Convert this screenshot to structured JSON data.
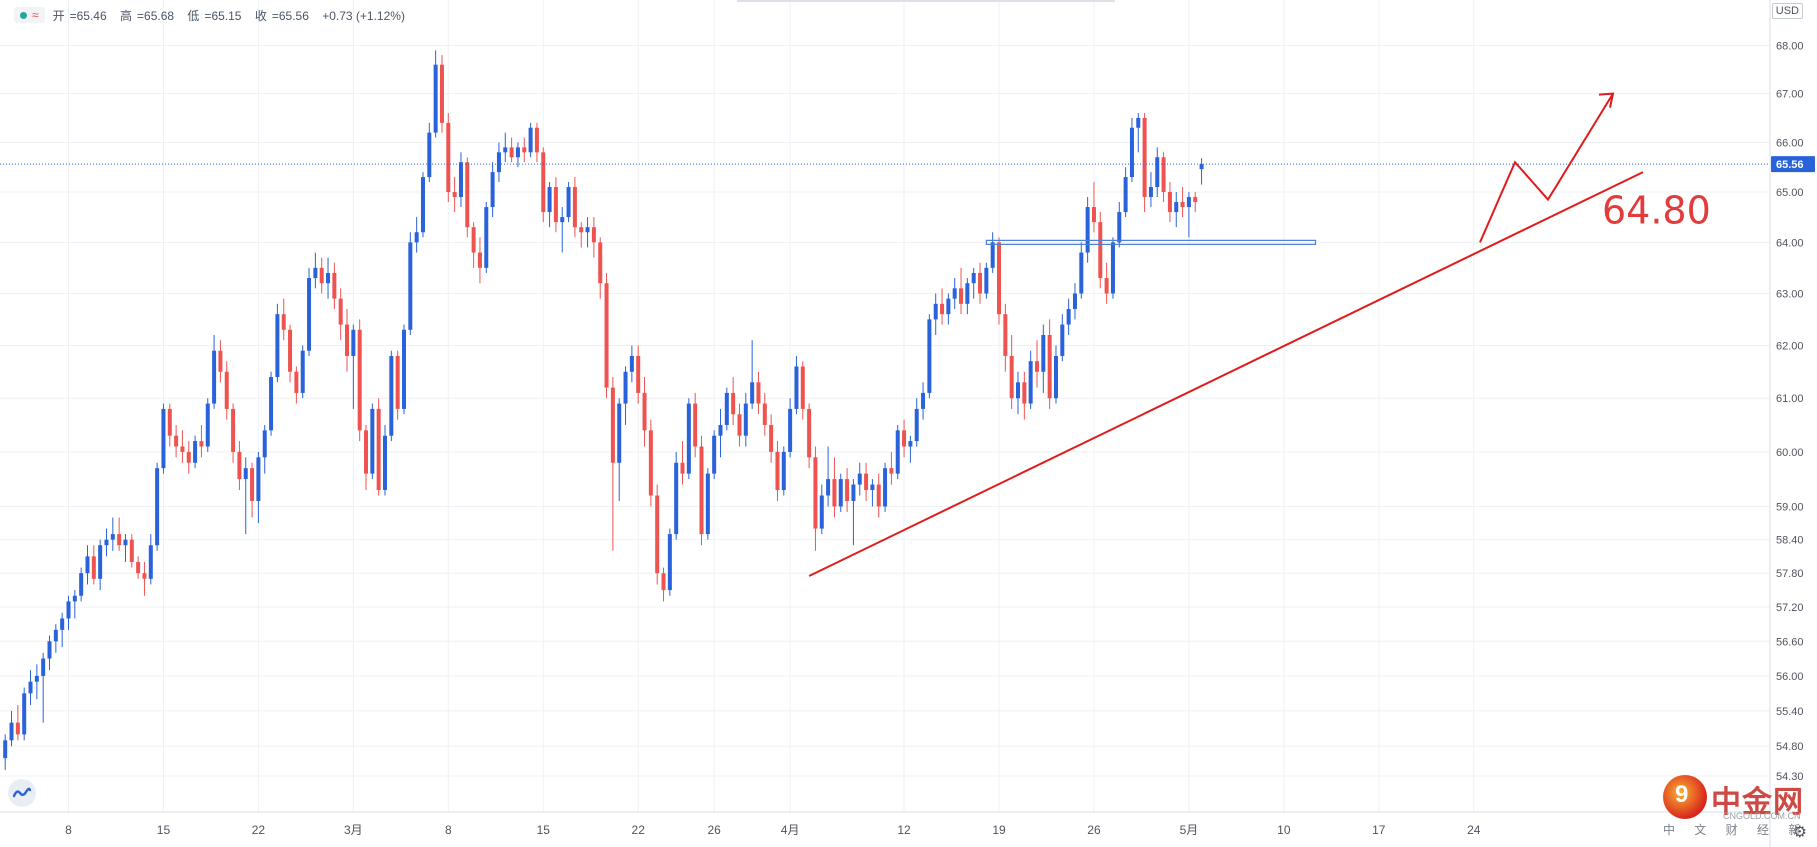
{
  "legend": {
    "open_label": "开",
    "open": "65.46",
    "high_label": "高",
    "high": "65.68",
    "low_label": "低",
    "low": "65.15",
    "close_label": "收",
    "close": "65.56",
    "change": "+0.73 (+1.12%)"
  },
  "currency": "USD",
  "annotation": {
    "level_text": "64.80"
  },
  "watermark": {
    "name": "中金网",
    "site": "CNGOLD.COM.CN",
    "sub": "中 文 财 经 新 媒 体"
  },
  "chart_data": {
    "type": "candlestick",
    "title": "",
    "xlabel": "",
    "ylabel": "",
    "ylim": [
      54.3,
      68.2
    ],
    "scale": "log",
    "grid": true,
    "y_ticks": [
      "68.00",
      "67.00",
      "66.00",
      "65.00",
      "64.00",
      "63.00",
      "62.00",
      "61.00",
      "60.00",
      "59.00",
      "58.40",
      "57.80",
      "57.20",
      "56.60",
      "56.00",
      "55.40",
      "54.80",
      "54.30"
    ],
    "x_ticks": [
      {
        "label": "8",
        "bar": 10
      },
      {
        "label": "15",
        "bar": 25
      },
      {
        "label": "22",
        "bar": 40
      },
      {
        "label": "3月",
        "bar": 55
      },
      {
        "label": "8",
        "bar": 70
      },
      {
        "label": "15",
        "bar": 85
      },
      {
        "label": "22",
        "bar": 100
      },
      {
        "label": "26",
        "bar": 112
      },
      {
        "label": "4月",
        "bar": 124
      },
      {
        "label": "12",
        "bar": 142
      },
      {
        "label": "19",
        "bar": 157
      },
      {
        "label": "26",
        "bar": 172
      },
      {
        "label": "5月",
        "bar": 187
      },
      {
        "label": "10",
        "bar": 202
      },
      {
        "label": "17",
        "bar": 217
      },
      {
        "label": "24",
        "bar": 232
      }
    ],
    "last_price": 65.56,
    "colors": {
      "up": "#2962d9",
      "down": "#ef5350",
      "annotation": "#e01b1b",
      "level": "#4a7fd6"
    },
    "candles_ohlc": [
      [
        54.6,
        55.0,
        54.4,
        54.9
      ],
      [
        54.9,
        55.4,
        54.8,
        55.2
      ],
      [
        55.2,
        55.5,
        54.9,
        55.0
      ],
      [
        55.0,
        55.8,
        54.9,
        55.7
      ],
      [
        55.7,
        56.1,
        55.5,
        55.9
      ],
      [
        55.9,
        56.2,
        55.6,
        56.0
      ],
      [
        56.0,
        56.4,
        55.2,
        56.3
      ],
      [
        56.3,
        56.7,
        56.1,
        56.6
      ],
      [
        56.6,
        56.9,
        56.4,
        56.8
      ],
      [
        56.8,
        57.1,
        56.5,
        57.0
      ],
      [
        57.0,
        57.4,
        56.8,
        57.3
      ],
      [
        57.3,
        57.5,
        57.0,
        57.4
      ],
      [
        57.4,
        57.9,
        57.3,
        57.8
      ],
      [
        57.8,
        58.3,
        57.6,
        58.1
      ],
      [
        58.1,
        58.3,
        57.6,
        57.7
      ],
      [
        57.7,
        58.4,
        57.5,
        58.3
      ],
      [
        58.3,
        58.6,
        58.1,
        58.4
      ],
      [
        58.4,
        58.8,
        58.2,
        58.5
      ],
      [
        58.5,
        58.8,
        58.2,
        58.3
      ],
      [
        58.3,
        58.5,
        58.0,
        58.4
      ],
      [
        58.4,
        58.5,
        57.9,
        58.0
      ],
      [
        58.0,
        58.1,
        57.7,
        57.8
      ],
      [
        57.8,
        58.0,
        57.4,
        57.7
      ],
      [
        57.7,
        58.5,
        57.6,
        58.3
      ],
      [
        58.3,
        59.8,
        58.2,
        59.7
      ],
      [
        59.7,
        60.9,
        59.6,
        60.8
      ],
      [
        60.8,
        60.9,
        60.1,
        60.3
      ],
      [
        60.3,
        60.5,
        59.9,
        60.1
      ],
      [
        60.1,
        60.4,
        59.8,
        60.0
      ],
      [
        60.0,
        60.2,
        59.6,
        59.8
      ],
      [
        59.8,
        60.3,
        59.7,
        60.2
      ],
      [
        60.2,
        60.5,
        59.9,
        60.1
      ],
      [
        60.1,
        61.0,
        60.0,
        60.9
      ],
      [
        60.9,
        62.2,
        60.8,
        61.9
      ],
      [
        61.9,
        62.1,
        61.3,
        61.5
      ],
      [
        61.5,
        61.7,
        60.6,
        60.8
      ],
      [
        60.8,
        60.9,
        59.8,
        60.0
      ],
      [
        60.0,
        60.2,
        59.3,
        59.5
      ],
      [
        59.5,
        59.9,
        58.5,
        59.7
      ],
      [
        59.7,
        59.8,
        58.8,
        59.1
      ],
      [
        59.1,
        60.0,
        58.7,
        59.9
      ],
      [
        59.9,
        60.5,
        59.6,
        60.4
      ],
      [
        60.4,
        61.5,
        60.3,
        61.4
      ],
      [
        61.4,
        62.8,
        61.3,
        62.6
      ],
      [
        62.6,
        62.9,
        62.1,
        62.3
      ],
      [
        62.3,
        62.4,
        61.3,
        61.5
      ],
      [
        61.5,
        61.6,
        60.9,
        61.1
      ],
      [
        61.1,
        62.0,
        61.0,
        61.9
      ],
      [
        61.9,
        63.5,
        61.8,
        63.3
      ],
      [
        63.3,
        63.8,
        63.1,
        63.5
      ],
      [
        63.5,
        63.7,
        63.0,
        63.2
      ],
      [
        63.2,
        63.7,
        62.9,
        63.4
      ],
      [
        63.4,
        63.6,
        62.7,
        62.9
      ],
      [
        62.9,
        63.1,
        62.1,
        62.4
      ],
      [
        62.4,
        62.7,
        61.5,
        61.8
      ],
      [
        61.8,
        62.4,
        60.8,
        62.3
      ],
      [
        62.3,
        62.5,
        60.2,
        60.4
      ],
      [
        60.4,
        60.5,
        59.3,
        59.6
      ],
      [
        59.6,
        60.9,
        59.5,
        60.8
      ],
      [
        60.8,
        61.0,
        59.2,
        59.3
      ],
      [
        59.3,
        60.5,
        59.2,
        60.3
      ],
      [
        60.3,
        61.9,
        60.2,
        61.8
      ],
      [
        61.8,
        61.9,
        60.6,
        60.8
      ],
      [
        60.8,
        62.4,
        60.7,
        62.3
      ],
      [
        62.3,
        64.2,
        62.2,
        64.0
      ],
      [
        64.0,
        64.5,
        63.8,
        64.2
      ],
      [
        64.2,
        65.4,
        64.1,
        65.3
      ],
      [
        65.3,
        66.4,
        65.2,
        66.2
      ],
      [
        66.2,
        67.9,
        66.1,
        67.6
      ],
      [
        67.6,
        67.8,
        66.2,
        66.4
      ],
      [
        66.4,
        66.6,
        64.8,
        65.0
      ],
      [
        65.0,
        65.3,
        64.6,
        64.9
      ],
      [
        64.9,
        65.8,
        64.7,
        65.6
      ],
      [
        65.6,
        65.7,
        64.1,
        64.3
      ],
      [
        64.3,
        64.4,
        63.5,
        63.8
      ],
      [
        63.8,
        64.1,
        63.2,
        63.5
      ],
      [
        63.5,
        64.8,
        63.4,
        64.7
      ],
      [
        64.7,
        65.6,
        64.5,
        65.4
      ],
      [
        65.4,
        66.0,
        65.2,
        65.8
      ],
      [
        65.8,
        66.2,
        65.6,
        65.9
      ],
      [
        65.9,
        66.1,
        65.6,
        65.7
      ],
      [
        65.7,
        66.0,
        65.5,
        65.9
      ],
      [
        65.9,
        66.1,
        65.6,
        65.8
      ],
      [
        65.8,
        66.4,
        65.7,
        66.3
      ],
      [
        66.3,
        66.4,
        65.6,
        65.8
      ],
      [
        65.8,
        65.9,
        64.4,
        64.6
      ],
      [
        64.6,
        65.2,
        64.3,
        65.1
      ],
      [
        65.1,
        65.3,
        64.2,
        64.4
      ],
      [
        64.4,
        64.7,
        63.8,
        64.5
      ],
      [
        64.5,
        65.2,
        64.4,
        65.1
      ],
      [
        65.1,
        65.3,
        64.1,
        64.3
      ],
      [
        64.3,
        64.4,
        63.9,
        64.2
      ],
      [
        64.2,
        64.5,
        63.9,
        64.3
      ],
      [
        64.3,
        64.5,
        63.7,
        64.0
      ],
      [
        64.0,
        64.1,
        62.9,
        63.2
      ],
      [
        63.2,
        63.4,
        61.0,
        61.2
      ],
      [
        61.2,
        61.4,
        58.2,
        59.8
      ],
      [
        59.8,
        61.0,
        59.1,
        60.9
      ],
      [
        60.9,
        61.6,
        60.5,
        61.5
      ],
      [
        61.5,
        62.0,
        61.3,
        61.8
      ],
      [
        61.8,
        62.0,
        60.9,
        61.1
      ],
      [
        61.1,
        61.4,
        60.1,
        60.4
      ],
      [
        60.4,
        60.6,
        59.0,
        59.2
      ],
      [
        59.2,
        59.4,
        57.6,
        57.8
      ],
      [
        57.8,
        57.9,
        57.3,
        57.5
      ],
      [
        57.5,
        58.6,
        57.4,
        58.5
      ],
      [
        58.5,
        60.0,
        58.4,
        59.8
      ],
      [
        59.8,
        60.2,
        59.4,
        59.6
      ],
      [
        59.6,
        61.0,
        59.5,
        60.9
      ],
      [
        60.9,
        61.1,
        59.9,
        60.1
      ],
      [
        60.1,
        60.3,
        58.3,
        58.5
      ],
      [
        58.5,
        59.7,
        58.4,
        59.6
      ],
      [
        59.6,
        60.4,
        59.5,
        60.3
      ],
      [
        60.3,
        60.8,
        59.9,
        60.5
      ],
      [
        60.5,
        61.2,
        60.4,
        61.1
      ],
      [
        61.1,
        61.4,
        60.5,
        60.7
      ],
      [
        60.7,
        60.9,
        60.1,
        60.3
      ],
      [
        60.3,
        61.1,
        60.1,
        60.9
      ],
      [
        60.9,
        62.1,
        60.8,
        61.3
      ],
      [
        61.3,
        61.5,
        60.7,
        60.9
      ],
      [
        60.9,
        61.1,
        60.3,
        60.5
      ],
      [
        60.5,
        60.7,
        59.8,
        60.0
      ],
      [
        60.0,
        60.2,
        59.1,
        59.3
      ],
      [
        59.3,
        60.1,
        59.2,
        60.0
      ],
      [
        60.0,
        61.0,
        59.9,
        60.8
      ],
      [
        60.8,
        61.8,
        60.7,
        61.6
      ],
      [
        61.6,
        61.7,
        60.6,
        60.8
      ],
      [
        60.8,
        60.9,
        59.7,
        59.9
      ],
      [
        59.9,
        60.1,
        58.2,
        58.6
      ],
      [
        58.6,
        59.4,
        58.5,
        59.2
      ],
      [
        59.2,
        60.1,
        59.0,
        59.5
      ],
      [
        59.5,
        59.9,
        58.8,
        59.0
      ],
      [
        59.0,
        59.6,
        58.9,
        59.5
      ],
      [
        59.5,
        59.7,
        58.9,
        59.1
      ],
      [
        59.1,
        59.5,
        58.3,
        59.4
      ],
      [
        59.4,
        59.8,
        59.2,
        59.6
      ],
      [
        59.6,
        59.8,
        59.1,
        59.3
      ],
      [
        59.3,
        59.5,
        59.0,
        59.4
      ],
      [
        59.4,
        59.6,
        58.8,
        59.0
      ],
      [
        59.0,
        59.8,
        58.9,
        59.7
      ],
      [
        59.7,
        60.0,
        59.4,
        59.6
      ],
      [
        59.6,
        60.5,
        59.5,
        60.4
      ],
      [
        60.4,
        60.6,
        59.9,
        60.1
      ],
      [
        60.1,
        60.3,
        59.8,
        60.2
      ],
      [
        60.2,
        61.0,
        60.1,
        60.8
      ],
      [
        60.8,
        61.3,
        60.6,
        61.1
      ],
      [
        61.1,
        62.6,
        61.0,
        62.5
      ],
      [
        62.5,
        63.0,
        62.2,
        62.8
      ],
      [
        62.8,
        63.1,
        62.4,
        62.6
      ],
      [
        62.6,
        63.0,
        62.4,
        62.9
      ],
      [
        62.9,
        63.3,
        62.7,
        63.1
      ],
      [
        63.1,
        63.5,
        62.6,
        62.8
      ],
      [
        62.8,
        63.3,
        62.6,
        63.2
      ],
      [
        63.2,
        63.5,
        62.9,
        63.4
      ],
      [
        63.4,
        63.6,
        62.8,
        63.0
      ],
      [
        63.0,
        63.6,
        62.9,
        63.5
      ],
      [
        63.5,
        64.2,
        63.4,
        64.0
      ],
      [
        64.0,
        64.1,
        62.4,
        62.6
      ],
      [
        62.6,
        62.8,
        61.5,
        61.8
      ],
      [
        61.8,
        62.2,
        60.8,
        61.0
      ],
      [
        61.0,
        61.5,
        60.7,
        61.3
      ],
      [
        61.3,
        61.5,
        60.6,
        60.9
      ],
      [
        60.9,
        61.9,
        60.8,
        61.7
      ],
      [
        61.7,
        62.1,
        61.2,
        61.5
      ],
      [
        61.5,
        62.4,
        61.1,
        62.2
      ],
      [
        62.2,
        62.5,
        60.8,
        61.0
      ],
      [
        61.0,
        62.0,
        60.9,
        61.8
      ],
      [
        61.8,
        62.6,
        61.7,
        62.4
      ],
      [
        62.4,
        62.9,
        62.2,
        62.7
      ],
      [
        62.7,
        63.2,
        62.5,
        63.0
      ],
      [
        63.0,
        64.0,
        62.9,
        63.8
      ],
      [
        63.8,
        64.9,
        63.6,
        64.7
      ],
      [
        64.7,
        65.2,
        64.2,
        64.4
      ],
      [
        64.4,
        64.6,
        63.1,
        63.3
      ],
      [
        63.3,
        63.6,
        62.8,
        63.0
      ],
      [
        63.0,
        64.1,
        62.9,
        64.0
      ],
      [
        64.0,
        64.8,
        63.9,
        64.6
      ],
      [
        64.6,
        65.5,
        64.5,
        65.3
      ],
      [
        65.3,
        66.5,
        65.2,
        66.3
      ],
      [
        66.3,
        66.6,
        65.8,
        66.5
      ],
      [
        66.5,
        66.6,
        64.6,
        64.9
      ],
      [
        64.9,
        65.4,
        64.7,
        65.1
      ],
      [
        65.1,
        65.9,
        64.9,
        65.7
      ],
      [
        65.7,
        65.8,
        64.8,
        65.0
      ],
      [
        65.0,
        65.2,
        64.4,
        64.6
      ],
      [
        64.6,
        65.0,
        64.3,
        64.8
      ],
      [
        64.8,
        65.1,
        64.5,
        64.7
      ],
      [
        64.7,
        65.0,
        64.1,
        64.9
      ],
      [
        64.9,
        65.0,
        64.6,
        64.8
      ],
      [
        65.46,
        65.68,
        65.15,
        65.56
      ]
    ]
  }
}
